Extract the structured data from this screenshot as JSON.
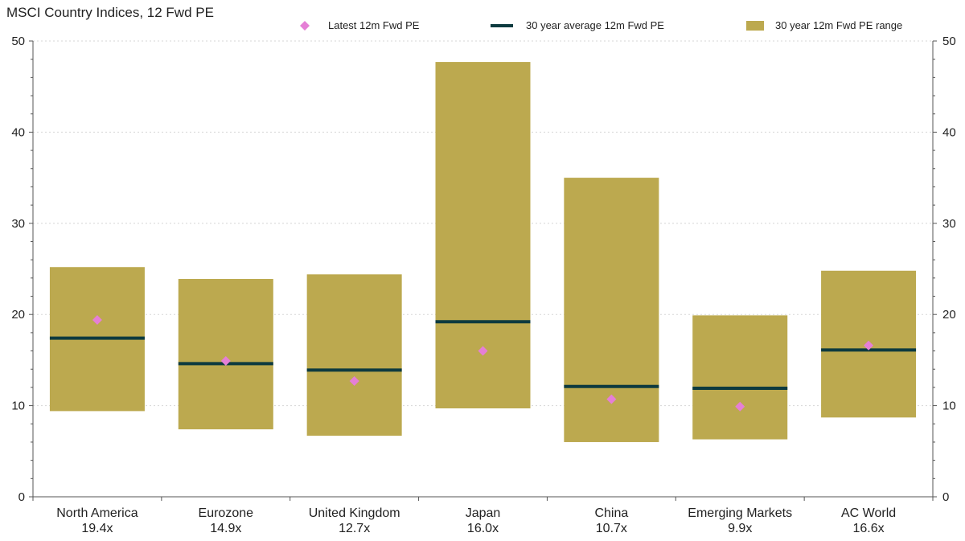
{
  "chart_data": {
    "type": "bar",
    "title": "MSCI Country Indices, 12 Fwd PE",
    "categories": [
      "North America",
      "Eurozone",
      "United Kingdom",
      "Japan",
      "China",
      "Emerging Markets",
      "AC World"
    ],
    "category_sublabels": [
      "19.4x",
      "14.9x",
      "12.7x",
      "16.0x",
      "10.7x",
      "9.9x",
      "16.6x"
    ],
    "series": [
      {
        "name": "Latest 12m Fwd PE",
        "kind": "marker",
        "color": "#e57fd6",
        "values": [
          19.4,
          14.9,
          12.7,
          16.0,
          10.7,
          9.9,
          16.6
        ]
      },
      {
        "name": "30 year average 12m Fwd PE",
        "kind": "line",
        "color": "#0d3a3f",
        "values": [
          17.4,
          14.6,
          13.9,
          19.2,
          12.1,
          11.9,
          16.1
        ]
      },
      {
        "name": "30 year 12m Fwd PE range",
        "kind": "range",
        "color": "#bca94f",
        "low": [
          9.4,
          7.4,
          6.7,
          9.7,
          6.0,
          6.3,
          8.7
        ],
        "high": [
          25.2,
          23.9,
          24.4,
          47.7,
          35.0,
          19.9,
          24.8
        ]
      }
    ],
    "ylim": [
      0,
      50
    ],
    "yticks": [
      0,
      10,
      20,
      30,
      40,
      50
    ],
    "xlabel": "",
    "ylabel": "",
    "grid": true,
    "legend_position": "top"
  }
}
